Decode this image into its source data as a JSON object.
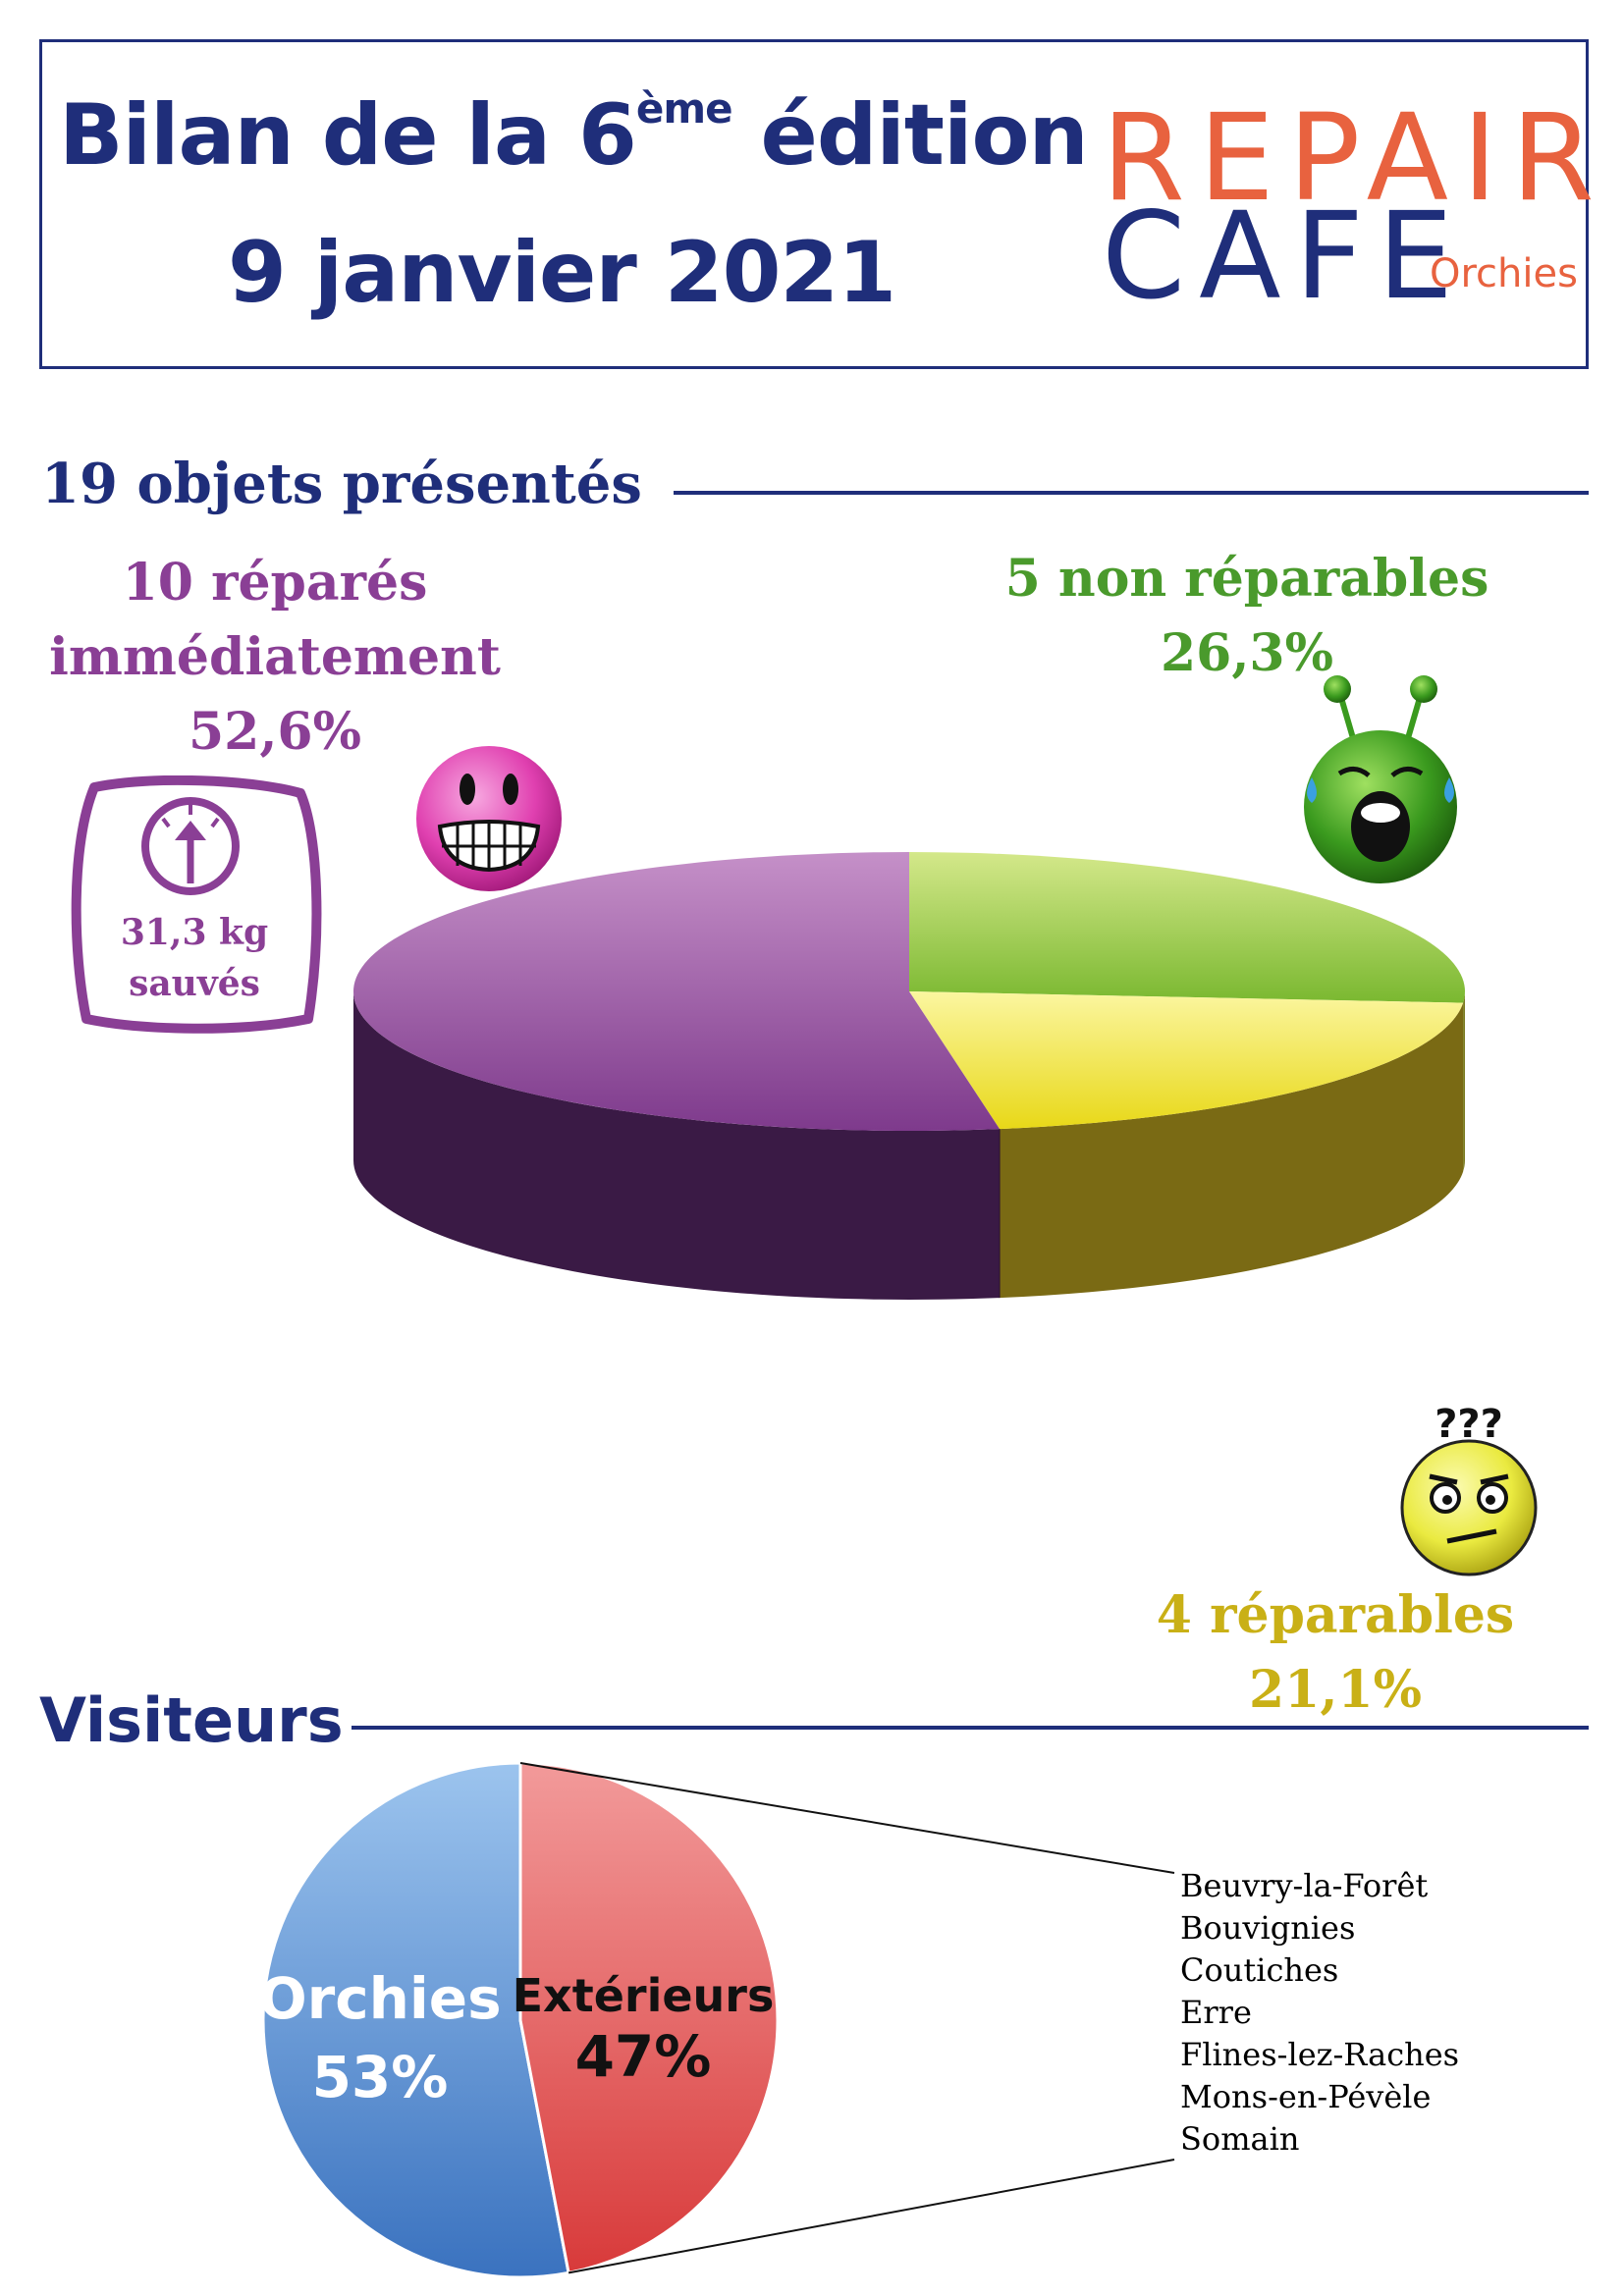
{
  "header": {
    "title_line1_pre": "Bilan de la 6",
    "title_line1_sup": "ème",
    "title_line1_post": " édition",
    "title_line2": "9 janvier 2021",
    "logo_line1": "REPAIR",
    "logo_line2": "CAFE",
    "logo_sub": "Orchies"
  },
  "objects": {
    "section_title": "19 objets présentés",
    "repaired": {
      "line1": "10 réparés",
      "line2": "immédiatement",
      "pct": "52,6%"
    },
    "not_repairable": {
      "line1": "5 non réparables",
      "pct": "26,3%"
    },
    "repairable": {
      "line1": "4 réparables",
      "pct": "21,1%"
    },
    "weight": {
      "value": "31,3 kg",
      "label": "sauvés"
    }
  },
  "visitors": {
    "section_title": "Visiteurs",
    "orchies_label": "Orchies",
    "orchies_pct": "53%",
    "ext_label": "Extérieurs",
    "ext_pct": "47%",
    "towns": [
      "Beuvry-la-Forêt",
      "Bouvignies",
      "Coutiches",
      "Erre",
      "Flines-lez-Raches",
      "Mons-en-Pévèle",
      "Somain"
    ]
  },
  "colors": {
    "navy": "#1f2e7a",
    "purple": "#8a3f95",
    "green": "#8cc63f",
    "yellow": "#f0e030",
    "blue": "#4f86cf",
    "red": "#e04d4d",
    "orange": "#e8623f"
  },
  "chart_data": [
    {
      "type": "pie",
      "title": "19 objets présentés",
      "categories": [
        "10 réparés immédiatement",
        "5 non réparables",
        "4 réparables"
      ],
      "values": [
        52.6,
        26.3,
        21.1
      ],
      "counts": [
        10,
        5,
        4
      ]
    },
    {
      "type": "pie",
      "title": "Visiteurs",
      "categories": [
        "Orchies",
        "Extérieurs"
      ],
      "values": [
        53,
        47
      ]
    }
  ]
}
